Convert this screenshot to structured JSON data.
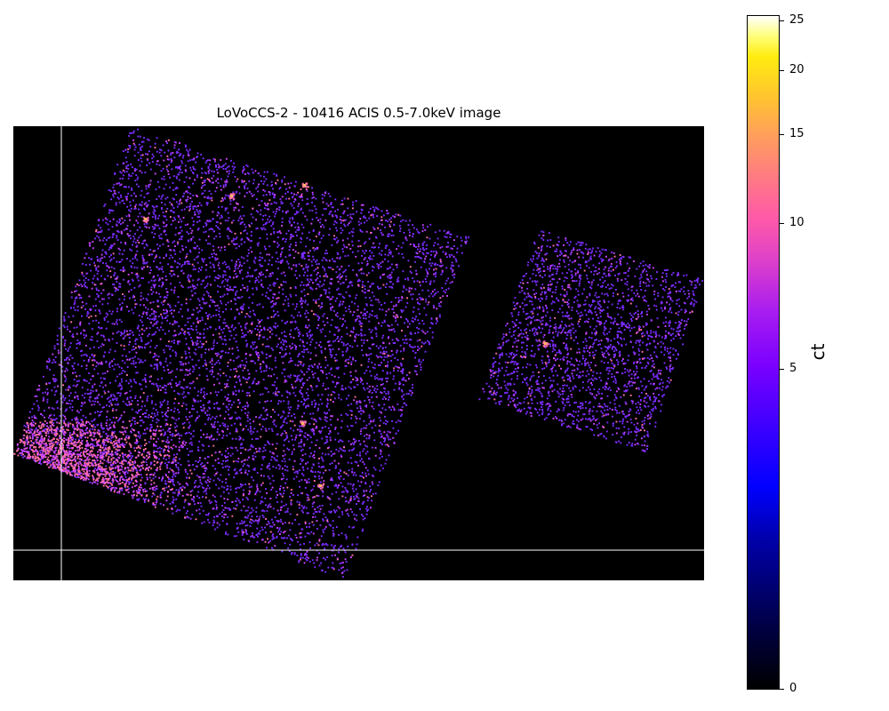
{
  "title": "LoVoCCS-2 - 10416 ACIS 0.5-7.0keV image",
  "colorbar": {
    "label": "ct",
    "scale": "asinh",
    "colormap": "gnuplot2",
    "range": [
      0,
      25.5
    ],
    "ticks": [
      {
        "value": 25,
        "label": "25"
      },
      {
        "value": 20,
        "label": "20"
      },
      {
        "value": 15,
        "label": "15"
      },
      {
        "value": 10,
        "label": "10"
      },
      {
        "value": 5,
        "label": "5"
      },
      {
        "value": 0,
        "label": "0"
      }
    ]
  },
  "image": {
    "background": "#000000",
    "crosshair_color": "#ffffff",
    "low_count_color": "#7a2cff",
    "mid_count_color": "#cc44ff",
    "high_count_color": "#ff6fa8",
    "peak_count_color": "#ffb266"
  }
}
